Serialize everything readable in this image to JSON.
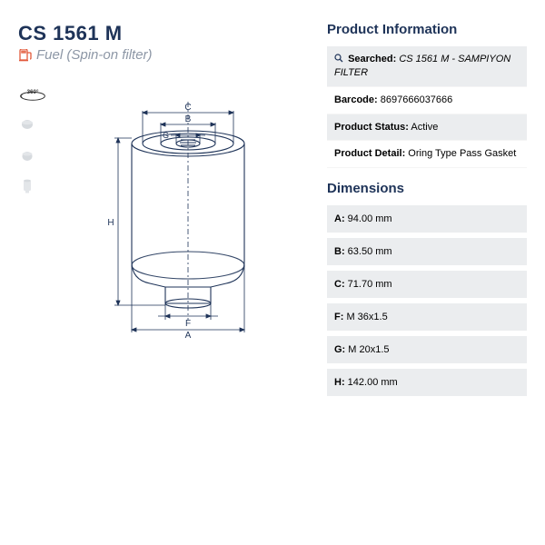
{
  "colors": {
    "heading": "#1e3358",
    "subtitle": "#8d97a6",
    "fuel_icon": "#e2593a",
    "shaded_bg": "#ebedef",
    "stroke": "#1e3358",
    "thumb": "#9aa0a8"
  },
  "product": {
    "code": "CS 1561 M",
    "subtitle": "Fuel (Spin-on filter)"
  },
  "info": {
    "title": "Product Information",
    "searched_label": "Searched:",
    "searched_value": "CS 1561 M - SAMPIYON FILTER",
    "barcode_label": "Barcode:",
    "barcode_value": "8697666037666",
    "status_label": "Product Status:",
    "status_value": "Active",
    "detail_label": "Product Detail:",
    "detail_value": "Oring Type Pass Gasket"
  },
  "dimensions": {
    "title": "Dimensions",
    "rows": [
      {
        "label": "A:",
        "value": "94.00 mm"
      },
      {
        "label": "B:",
        "value": "63.50 mm"
      },
      {
        "label": "C:",
        "value": "71.70 mm"
      },
      {
        "label": "F:",
        "value": "M 36x1.5"
      },
      {
        "label": "G:",
        "value": "M 20x1.5"
      },
      {
        "label": "H:",
        "value": "142.00 mm"
      }
    ]
  },
  "diagram": {
    "labels": {
      "A": "A",
      "B": "B",
      "C": "C",
      "F": "F",
      "G": "G",
      "H": "H"
    }
  }
}
